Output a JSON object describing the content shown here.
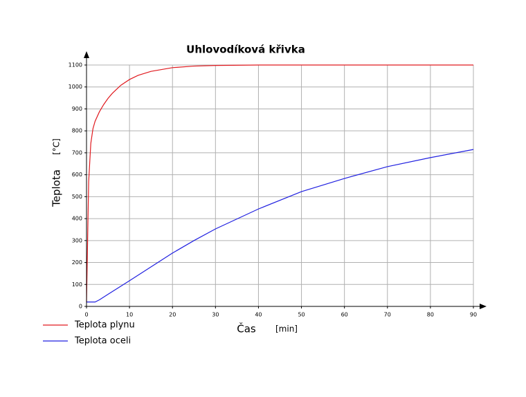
{
  "chart_data": {
    "type": "line",
    "title": "Uhlovodíková křivka",
    "x_label": "Čas",
    "x_unit": "[min]",
    "y_label": "Teplota",
    "y_unit": "[°C]",
    "xlim": [
      0,
      90
    ],
    "xticks": [
      0,
      10,
      20,
      30,
      40,
      50,
      60,
      70,
      80,
      90
    ],
    "ylim": [
      0,
      1100
    ],
    "yticks": [
      0,
      100,
      200,
      300,
      400,
      500,
      600,
      700,
      800,
      900,
      1000,
      1100
    ],
    "grid": true,
    "legend": "bottom-left",
    "series": [
      {
        "name": "Teplota plynu",
        "color": "#e0191e",
        "x": [
          0,
          0.5,
          1,
          1.5,
          2,
          3,
          4,
          5,
          6,
          8,
          10,
          12,
          15,
          20,
          25,
          30,
          40,
          90
        ],
        "values": [
          20,
          568,
          743,
          810,
          844,
          887,
          920,
          948,
          971,
          1008,
          1034,
          1053,
          1071,
          1088,
          1095,
          1098,
          1100,
          1100
        ]
      },
      {
        "name": "Teplota oceli",
        "color": "#1f1fe0",
        "x": [
          0,
          1,
          2,
          3,
          5,
          10,
          15,
          20,
          25,
          30,
          40,
          50,
          60,
          70,
          80,
          90
        ],
        "values": [
          20,
          20,
          20,
          30,
          55,
          117,
          180,
          243,
          300,
          353,
          444,
          523,
          583,
          637,
          678,
          715
        ]
      }
    ]
  }
}
